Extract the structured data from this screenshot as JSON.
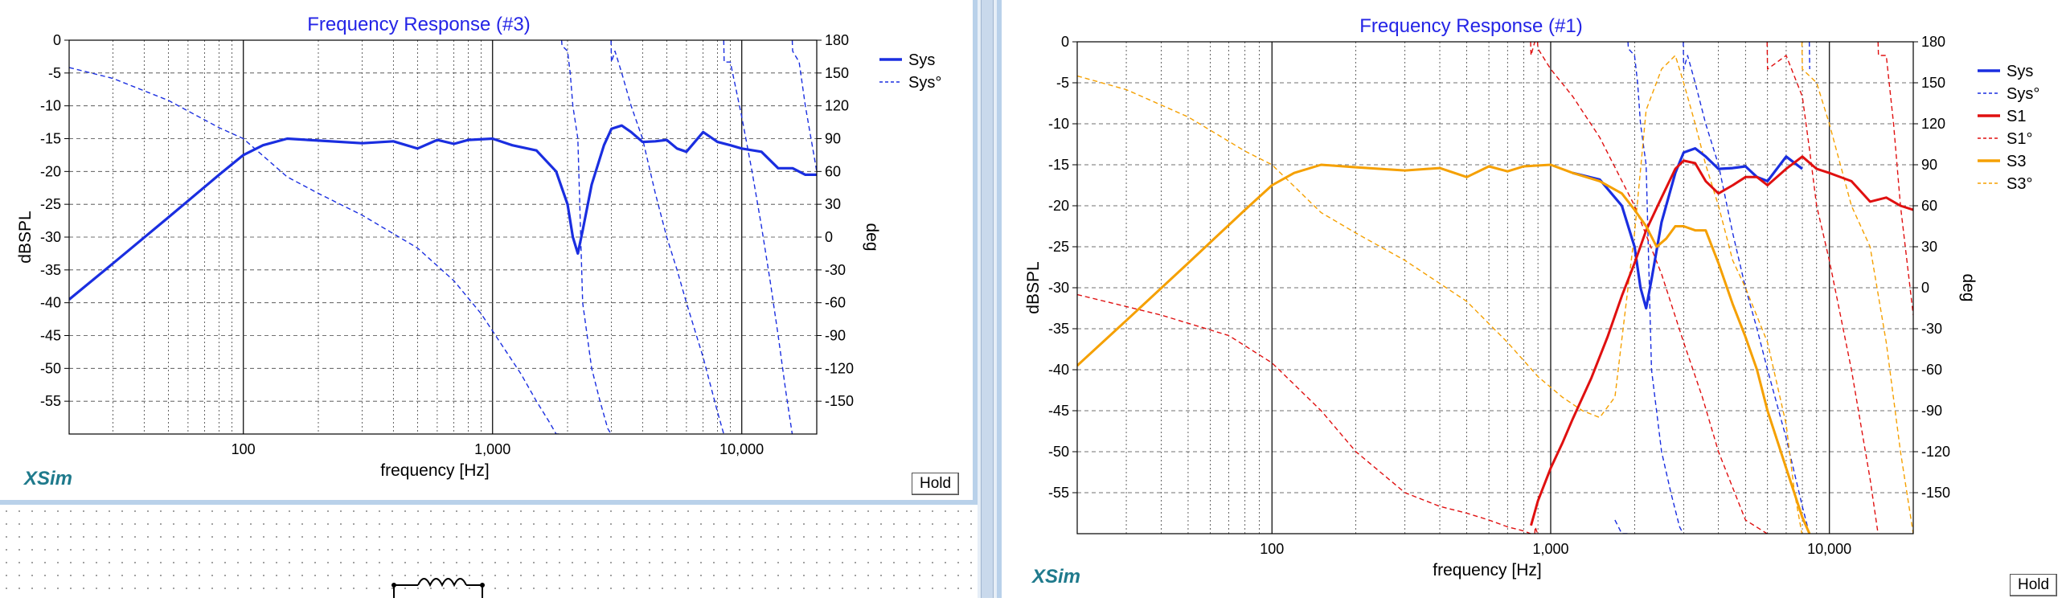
{
  "brand": "XSim",
  "hold_label": "Hold",
  "chart_data": [
    {
      "type": "line",
      "title": "Frequency Response (#3)",
      "xlabel": "frequency [Hz]",
      "ylabel": "dBSPL",
      "y2label": "deg",
      "xscale": "log",
      "xlim": [
        20,
        20000
      ],
      "ylim": [
        -60,
        0
      ],
      "y2lim": [
        -180,
        180
      ],
      "xticks": [
        "100",
        "1,000",
        "10,000"
      ],
      "yticks": [
        "0",
        "-5",
        "-10",
        "-15",
        "-20",
        "-25",
        "-30",
        "-35",
        "-40",
        "-45",
        "-50",
        "-55"
      ],
      "y2ticks": [
        "180",
        "150",
        "120",
        "90",
        "60",
        "30",
        "0",
        "-30",
        "-60",
        "-90",
        "-120",
        "-150"
      ],
      "grid": true,
      "legend": "top-right",
      "series": [
        {
          "name": "Sys",
          "axis": "spl",
          "color": "#1a2ee0",
          "style": "solid",
          "width": 3.2,
          "x": [
            20,
            30,
            50,
            80,
            100,
            120,
            150,
            200,
            300,
            400,
            500,
            600,
            700,
            800,
            1000,
            1200,
            1500,
            1800,
            2000,
            2100,
            2200,
            2300,
            2500,
            2800,
            3000,
            3300,
            3600,
            4000,
            4500,
            5000,
            5500,
            6000,
            7000,
            8000,
            9000,
            10000,
            12000,
            14000,
            16000,
            18000,
            20000
          ],
          "y": [
            -39.5,
            -34,
            -27,
            -20.5,
            -17.5,
            -16,
            -15,
            -15.3,
            -15.7,
            -15.4,
            -16.5,
            -15.2,
            -15.8,
            -15.2,
            -15.0,
            -16,
            -16.8,
            -20,
            -25,
            -30,
            -32.5,
            -29,
            -22,
            -16,
            -13.5,
            -13,
            -14,
            -15.5,
            -15.4,
            -15.2,
            -16.5,
            -17,
            -14,
            -15.5,
            -16,
            -16.5,
            -17,
            -19.5,
            -19.5,
            -20.5,
            -20.5
          ]
        },
        {
          "name": "Sys°",
          "axis": "deg",
          "color": "#1a2ee0",
          "style": "dashed",
          "width": 1.4,
          "wrap": true,
          "x": [
            20,
            30,
            50,
            80,
            100,
            150,
            200,
            300,
            500,
            700,
            900,
            1100,
            1300,
            1500,
            1700,
            1800,
            1900,
            2000,
            2050,
            2100,
            2200,
            2300,
            2500,
            2700,
            2900,
            3000,
            3100,
            3300,
            3600,
            4000,
            4500,
            5000,
            5500,
            6000,
            7000,
            8000,
            8500,
            9000,
            10000,
            11000,
            12000,
            13000,
            14000,
            15000,
            16000,
            17000,
            18000,
            20000
          ],
          "y": [
            155,
            145,
            125,
            100,
            90,
            55,
            40,
            20,
            -10,
            -40,
            -70,
            -100,
            -125,
            -150,
            -170,
            -180,
            175,
            170,
            150,
            120,
            90,
            -60,
            -120,
            -150,
            -175,
            -200,
            170,
            150,
            120,
            90,
            40,
            0,
            -30,
            -60,
            -110,
            -160,
            -200,
            160,
            110,
            60,
            10,
            -40,
            -90,
            -140,
            -190,
            160,
            120,
            60
          ]
        }
      ]
    },
    {
      "type": "line",
      "title": "Frequency Response (#1)",
      "xlabel": "frequency [Hz]",
      "ylabel": "dBSPL",
      "y2label": "deg",
      "xscale": "log",
      "xlim": [
        20,
        20000
      ],
      "ylim": [
        -60,
        0
      ],
      "y2lim": [
        -180,
        180
      ],
      "xticks": [
        "100",
        "1,000",
        "10,000"
      ],
      "yticks": [
        "0",
        "-5",
        "-10",
        "-15",
        "-20",
        "-25",
        "-30",
        "-35",
        "-40",
        "-45",
        "-50",
        "-55"
      ],
      "y2ticks": [
        "180",
        "150",
        "120",
        "90",
        "60",
        "30",
        "0",
        "-30",
        "-60",
        "-90",
        "-120",
        "-150"
      ],
      "grid": true,
      "legend": "top-right",
      "series": [
        {
          "name": "Sys",
          "axis": "spl",
          "color": "#1a2ee0",
          "style": "solid",
          "width": 3.2,
          "x": [
            1200,
            1500,
            1800,
            2000,
            2100,
            2200,
            2300,
            2500,
            2800,
            3000,
            3300,
            3600,
            4000,
            4500,
            5000,
            5500,
            6000,
            7000,
            8000
          ],
          "y": [
            -16,
            -16.8,
            -20,
            -25,
            -30,
            -32.5,
            -29,
            -22,
            -16,
            -13.5,
            -13,
            -14,
            -15.5,
            -15.4,
            -15.2,
            -16.5,
            -17,
            -14,
            -15.5
          ]
        },
        {
          "name": "Sys°",
          "axis": "deg",
          "color": "#1a2ee0",
          "style": "dashed",
          "width": 1.4,
          "wrap": true,
          "x": [
            1700,
            1800,
            1900,
            2000,
            2050,
            2100,
            2200,
            2300,
            2500,
            2700,
            2900,
            3000,
            3100,
            3300,
            3600,
            4000,
            4500,
            5000,
            5500,
            6000,
            7000,
            8000,
            8500
          ],
          "y": [
            -170,
            -180,
            175,
            170,
            150,
            120,
            90,
            -60,
            -120,
            -150,
            -175,
            -200,
            170,
            150,
            120,
            90,
            40,
            0,
            -30,
            -60,
            -110,
            -160,
            -200
          ]
        },
        {
          "name": "S1",
          "axis": "spl",
          "color": "#e01010",
          "style": "solid",
          "width": 3.0,
          "x": [
            850,
            900,
            1000,
            1100,
            1200,
            1400,
            1600,
            1800,
            2000,
            2200,
            2500,
            2800,
            3000,
            3300,
            3600,
            4000,
            4500,
            5000,
            5500,
            6000,
            7000,
            8000,
            9000,
            10000,
            12000,
            14000,
            16000,
            18000,
            20000
          ],
          "y": [
            -59,
            -56,
            -52,
            -49,
            -46,
            -41,
            -36,
            -31,
            -27,
            -23,
            -19,
            -15.5,
            -14.5,
            -14.8,
            -17,
            -18.5,
            -17.5,
            -16.5,
            -16.5,
            -17.5,
            -15.5,
            -14,
            -15.5,
            -16,
            -17,
            -19.5,
            -19,
            -20,
            -20.5
          ]
        },
        {
          "name": "S1°",
          "axis": "deg",
          "color": "#e01010",
          "style": "dashed",
          "width": 1.4,
          "wrap": true,
          "x": [
            20,
            40,
            70,
            100,
            150,
            200,
            300,
            400,
            500,
            600,
            700,
            800,
            850,
            880,
            900,
            1000,
            1200,
            1500,
            2000,
            2500,
            3000,
            3500,
            4000,
            5000,
            6000,
            7000,
            8000,
            8500,
            9000,
            10000,
            12000,
            14000,
            15000,
            16000,
            17000,
            18000,
            20000
          ],
          "y": [
            -5,
            -20,
            -35,
            -55,
            -90,
            -120,
            -150,
            -160,
            -165,
            -170,
            -175,
            -178,
            -190,
            185,
            175,
            160,
            140,
            110,
            60,
            10,
            -40,
            -80,
            -120,
            -170,
            -200,
            170,
            140,
            100,
            60,
            20,
            -60,
            -140,
            -190,
            170,
            120,
            60,
            -20
          ]
        },
        {
          "name": "S3",
          "axis": "spl",
          "color": "#f5a000",
          "style": "solid",
          "width": 3.0,
          "x": [
            20,
            30,
            50,
            80,
            100,
            120,
            150,
            200,
            300,
            400,
            500,
            600,
            700,
            800,
            1000,
            1200,
            1500,
            1800,
            2000,
            2200,
            2400,
            2600,
            2800,
            3000,
            3300,
            3600,
            4000,
            4500,
            5000,
            5500,
            6000,
            7000,
            8000,
            9000,
            10000
          ],
          "y": [
            -39.5,
            -34,
            -27,
            -20.5,
            -17.5,
            -16,
            -15,
            -15.3,
            -15.7,
            -15.4,
            -16.5,
            -15.2,
            -15.8,
            -15.2,
            -15.0,
            -16,
            -17,
            -18.5,
            -20.5,
            -22.5,
            -25,
            -24,
            -22.5,
            -22.5,
            -23,
            -23,
            -27,
            -32,
            -36,
            -40,
            -45,
            -52,
            -58,
            -62,
            -65
          ]
        },
        {
          "name": "S3°",
          "axis": "deg",
          "color": "#f5a000",
          "style": "dashed",
          "width": 1.4,
          "wrap": true,
          "x": [
            20,
            30,
            50,
            80,
            100,
            150,
            200,
            300,
            500,
            700,
            900,
            1100,
            1300,
            1500,
            1700,
            2000,
            2200,
            2500,
            2800,
            3000,
            3300,
            3600,
            4000,
            4500,
            5000,
            6000,
            7000,
            7500,
            8000,
            9000,
            10000,
            12000,
            14000,
            16000,
            18000,
            20000
          ],
          "y": [
            155,
            145,
            125,
            100,
            90,
            55,
            40,
            20,
            -10,
            -40,
            -65,
            -80,
            -90,
            -95,
            -80,
            40,
            130,
            160,
            170,
            150,
            120,
            90,
            60,
            20,
            0,
            -40,
            -100,
            -150,
            -200,
            150,
            120,
            60,
            30,
            -40,
            -120,
            -180
          ]
        }
      ]
    }
  ]
}
